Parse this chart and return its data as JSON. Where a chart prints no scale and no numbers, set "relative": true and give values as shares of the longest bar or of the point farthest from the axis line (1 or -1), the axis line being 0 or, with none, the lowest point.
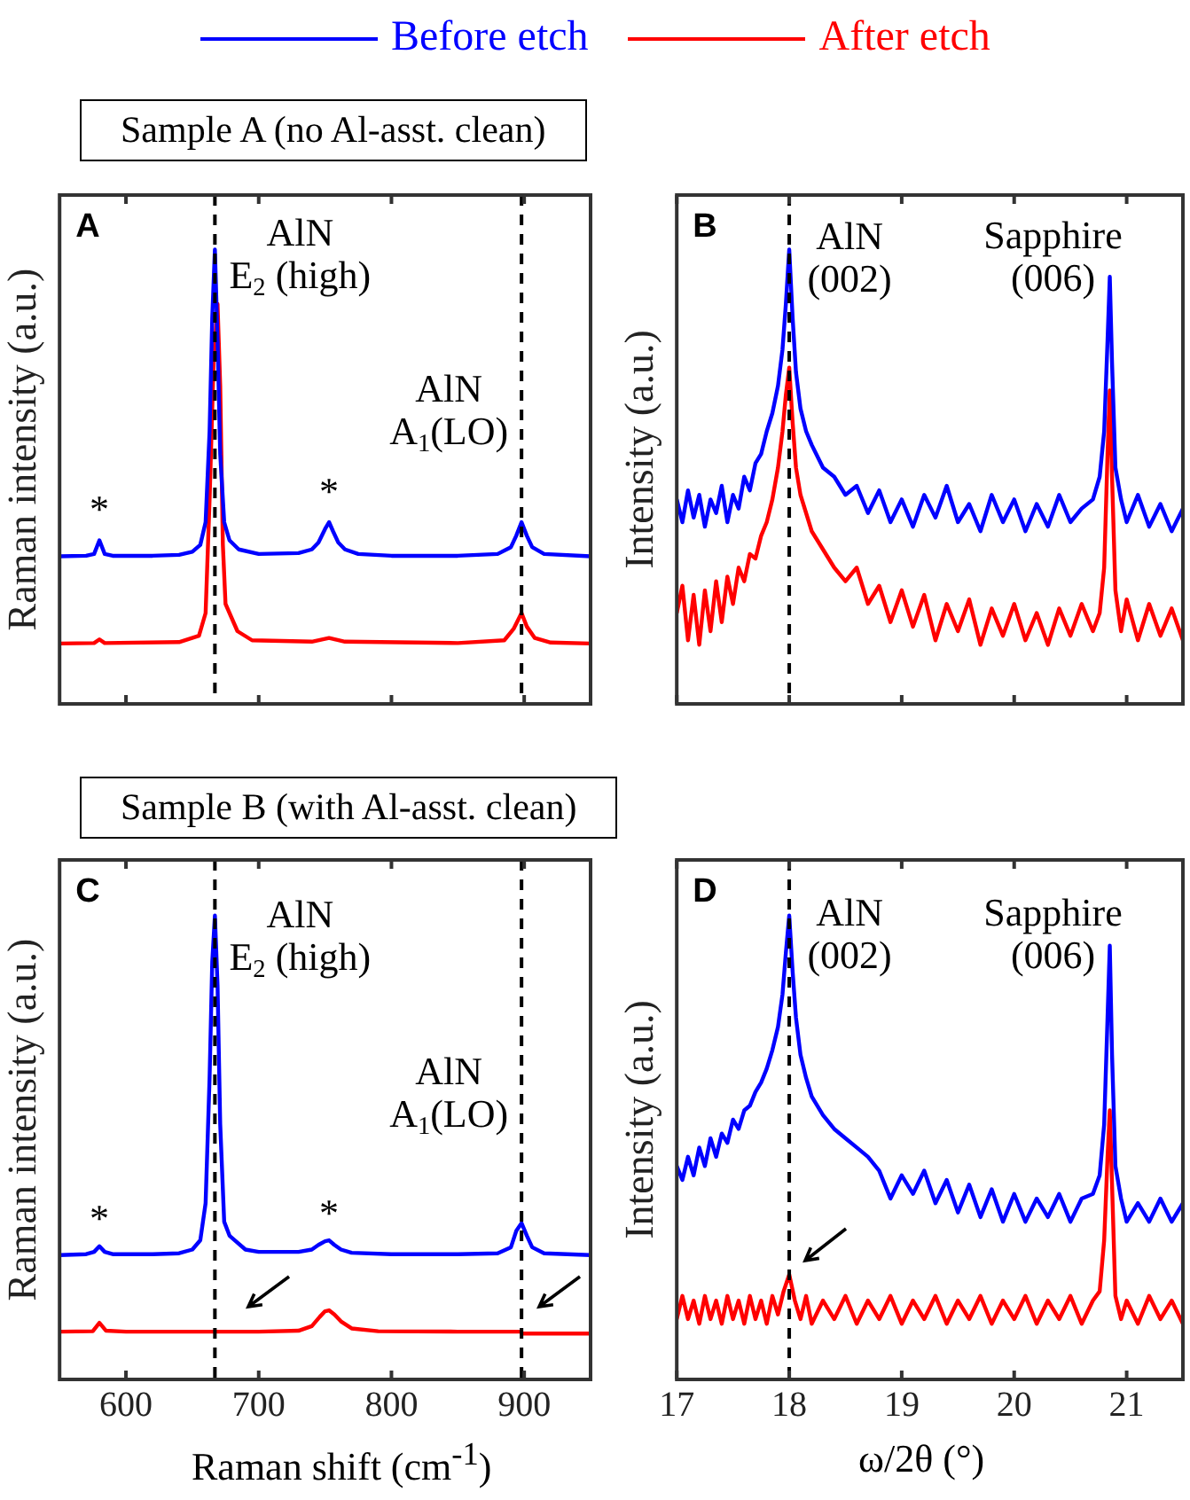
{
  "chart_data": [
    {
      "type": "line",
      "title": "Sample A (no Al-asst. clean)",
      "ylabel": "Raman intensity (a.u.)",
      "relative": true,
      "legend": "top",
      "tick_labels": false,
      "xlim": [
        550,
        950
      ],
      "xticks": [
        600,
        700,
        800,
        900
      ],
      "ref_lines": [
        {
          "axis": "x",
          "value": 667,
          "color": "#000000",
          "line_style": "dashed"
        },
        {
          "axis": "x",
          "value": 898,
          "color": "#000000",
          "line_style": "dashed"
        }
      ],
      "annotations": [
        "A",
        {
          "text": "AlN\nE$_{2}$ (high)",
          "x": 667,
          "y": 1
        },
        {
          "text": "AlN\nA$_{1}$(LO)",
          "x": 898,
          "y": 0.4
        },
        {
          "text": "*",
          "x": 580,
          "y": 0.36
        },
        {
          "text": "*",
          "x": 753,
          "y": 0.4
        }
      ],
      "series": [
        {
          "name": "Before etch",
          "color": "#0000ff",
          "x": [
            550,
            570,
            576,
            580,
            584,
            590,
            620,
            640,
            650,
            656,
            660,
            663,
            665,
            667,
            669,
            671,
            674,
            678,
            685,
            700,
            730,
            740,
            745,
            750,
            753,
            756,
            760,
            765,
            775,
            800,
            850,
            880,
            890,
            894,
            898,
            902,
            906,
            915,
            950
          ],
          "values": [
            0.325,
            0.326,
            0.33,
            0.36,
            0.33,
            0.326,
            0.326,
            0.328,
            0.335,
            0.35,
            0.4,
            0.6,
            0.85,
            1,
            0.8,
            0.55,
            0.4,
            0.36,
            0.34,
            0.33,
            0.332,
            0.34,
            0.355,
            0.385,
            0.4,
            0.38,
            0.355,
            0.34,
            0.33,
            0.326,
            0.326,
            0.33,
            0.345,
            0.37,
            0.4,
            0.37,
            0.345,
            0.33,
            0.325
          ]
        },
        {
          "name": "After etch",
          "color": "#ff0000",
          "x": [
            550,
            576,
            580,
            584,
            640,
            655,
            660,
            663,
            666,
            669,
            671,
            673,
            675,
            678,
            684,
            695,
            740,
            753,
            765,
            850,
            885,
            892,
            898,
            902,
            908,
            920,
            950
          ],
          "values": [
            0.133,
            0.134,
            0.142,
            0.134,
            0.136,
            0.15,
            0.2,
            0.45,
            0.75,
            0.88,
            0.7,
            0.35,
            0.22,
            0.2,
            0.16,
            0.14,
            0.137,
            0.145,
            0.137,
            0.134,
            0.14,
            0.165,
            0.2,
            0.17,
            0.145,
            0.135,
            0.133
          ]
        }
      ]
    },
    {
      "type": "line",
      "ylabel": "Intensity (a.u.)",
      "relative": true,
      "tick_labels": false,
      "xlim": [
        17,
        21.5
      ],
      "xticks": [
        17,
        18,
        19,
        20,
        21
      ],
      "ref_lines": [
        {
          "axis": "x",
          "value": 18,
          "color": "#000000",
          "line_style": "dashed"
        }
      ],
      "annotations": [
        "B",
        {
          "text": "AlN\n(002)",
          "x": 18,
          "y": 1
        },
        {
          "text": "Sapphire\n(006)",
          "x": 20.85,
          "y": 0.94
        }
      ],
      "series": [
        {
          "color": "#0000ff",
          "x": [
            17,
            17.05,
            17.1,
            17.15,
            17.2,
            17.25,
            17.3,
            17.35,
            17.4,
            17.45,
            17.5,
            17.55,
            17.6,
            17.65,
            17.7,
            17.75,
            17.8,
            17.85,
            17.9,
            17.94,
            17.97,
            18,
            18.03,
            18.06,
            18.1,
            18.15,
            18.2,
            18.3,
            18.4,
            18.5,
            18.6,
            18.7,
            18.8,
            18.9,
            19,
            19.1,
            19.2,
            19.3,
            19.4,
            19.5,
            19.6,
            19.7,
            19.8,
            19.9,
            20,
            20.1,
            20.2,
            20.3,
            20.4,
            20.5,
            20.6,
            20.7,
            20.76,
            20.8,
            20.83,
            20.85,
            20.87,
            20.9,
            20.95,
            21,
            21.1,
            21.2,
            21.3,
            21.4,
            21.5
          ],
          "values": [
            0.45,
            0.4,
            0.47,
            0.41,
            0.46,
            0.39,
            0.45,
            0.42,
            0.48,
            0.4,
            0.46,
            0.43,
            0.5,
            0.47,
            0.53,
            0.55,
            0.6,
            0.64,
            0.7,
            0.78,
            0.88,
            1,
            0.85,
            0.73,
            0.65,
            0.6,
            0.57,
            0.52,
            0.5,
            0.46,
            0.48,
            0.42,
            0.47,
            0.4,
            0.45,
            0.39,
            0.46,
            0.41,
            0.48,
            0.4,
            0.44,
            0.38,
            0.46,
            0.4,
            0.45,
            0.38,
            0.44,
            0.39,
            0.46,
            0.4,
            0.43,
            0.45,
            0.5,
            0.6,
            0.8,
            0.94,
            0.75,
            0.52,
            0.45,
            0.4,
            0.46,
            0.39,
            0.44,
            0.38,
            0.43
          ]
        },
        {
          "color": "#ff0000",
          "x": [
            17,
            17.05,
            17.1,
            17.15,
            17.2,
            17.25,
            17.3,
            17.35,
            17.4,
            17.45,
            17.5,
            17.55,
            17.6,
            17.65,
            17.7,
            17.75,
            17.8,
            17.85,
            17.9,
            17.94,
            17.97,
            18,
            18.03,
            18.06,
            18.1,
            18.15,
            18.2,
            18.3,
            18.4,
            18.5,
            18.6,
            18.7,
            18.8,
            18.9,
            19,
            19.1,
            19.2,
            19.3,
            19.4,
            19.5,
            19.6,
            19.7,
            19.8,
            19.9,
            20,
            20.1,
            20.2,
            20.3,
            20.4,
            20.5,
            20.6,
            20.7,
            20.76,
            20.8,
            20.83,
            20.85,
            20.87,
            20.9,
            20.95,
            21,
            21.1,
            21.2,
            21.3,
            21.4,
            21.5
          ],
          "values": [
            0.2,
            0.26,
            0.14,
            0.24,
            0.13,
            0.25,
            0.16,
            0.27,
            0.18,
            0.28,
            0.22,
            0.3,
            0.27,
            0.33,
            0.32,
            0.37,
            0.4,
            0.45,
            0.52,
            0.6,
            0.68,
            0.74,
            0.62,
            0.52,
            0.46,
            0.42,
            0.38,
            0.34,
            0.3,
            0.27,
            0.3,
            0.22,
            0.26,
            0.18,
            0.25,
            0.17,
            0.24,
            0.14,
            0.22,
            0.16,
            0.23,
            0.13,
            0.21,
            0.15,
            0.22,
            0.14,
            0.2,
            0.13,
            0.21,
            0.15,
            0.22,
            0.16,
            0.2,
            0.3,
            0.55,
            0.69,
            0.5,
            0.25,
            0.16,
            0.23,
            0.14,
            0.22,
            0.15,
            0.21,
            0.14
          ]
        }
      ]
    },
    {
      "type": "line",
      "title": "Sample B (with Al-asst. clean)",
      "ylabel": "Raman intensity (a.u.)",
      "xlabel": "Raman shift (cm$^{-1}$)",
      "relative": true,
      "tick_labels": "x",
      "xlim": [
        550,
        950
      ],
      "xticks": [
        600,
        700,
        800,
        900
      ],
      "ref_lines": [
        {
          "axis": "x",
          "value": 667,
          "color": "#000000",
          "line_style": "dashed"
        },
        {
          "axis": "x",
          "value": 898,
          "color": "#000000",
          "line_style": "dashed"
        }
      ],
      "annotations": [
        "C",
        {
          "text": "AlN\nE$_{2}$ (high)",
          "x": 667,
          "y": 1
        },
        {
          "text": "AlN\nA$_{1}$(LO)",
          "x": 898,
          "y": 0.337
        },
        {
          "text": "*",
          "x": 580,
          "y": 0.287
        },
        {
          "text": "*",
          "x": 753,
          "y": 0.3
        }
      ],
      "series": [
        {
          "color": "#0000ff",
          "x": [
            550,
            570,
            576,
            580,
            584,
            590,
            620,
            640,
            650,
            656,
            660,
            663,
            665,
            667,
            669,
            671,
            674,
            678,
            682,
            690,
            700,
            730,
            740,
            745,
            750,
            753,
            757,
            762,
            770,
            800,
            850,
            880,
            890,
            894,
            898,
            902,
            906,
            915,
            950
          ],
          "values": [
            0.268,
            0.27,
            0.275,
            0.287,
            0.275,
            0.27,
            0.27,
            0.272,
            0.28,
            0.3,
            0.38,
            0.65,
            0.9,
            1,
            0.85,
            0.55,
            0.34,
            0.31,
            0.3,
            0.28,
            0.275,
            0.275,
            0.28,
            0.29,
            0.298,
            0.3,
            0.29,
            0.28,
            0.273,
            0.27,
            0.27,
            0.272,
            0.285,
            0.32,
            0.337,
            0.31,
            0.285,
            0.272,
            0.268
          ]
        },
        {
          "color": "#ff0000",
          "x": [
            550,
            575,
            580,
            585,
            600,
            700,
            730,
            740,
            746,
            750,
            753,
            757,
            762,
            770,
            790,
            850,
            897,
            899,
            950
          ],
          "values": [
            0.103,
            0.104,
            0.122,
            0.105,
            0.103,
            0.103,
            0.105,
            0.115,
            0.135,
            0.147,
            0.149,
            0.14,
            0.125,
            0.11,
            0.104,
            0.103,
            0.103,
            0.099,
            0.099
          ]
        }
      ]
    },
    {
      "type": "line",
      "ylabel": "Intensity (a.u.)",
      "xlabel": "ω/2θ (°)",
      "relative": true,
      "tick_labels": "x",
      "xlim": [
        17,
        21.5
      ],
      "xticks": [
        17,
        18,
        19,
        20,
        21
      ],
      "ref_lines": [
        {
          "axis": "x",
          "value": 18,
          "color": "#000000",
          "line_style": "dashed"
        }
      ],
      "annotations": [
        "D",
        {
          "text": "AlN\n(002)",
          "x": 18,
          "y": 1
        },
        {
          "text": "Sapphire\n(006)",
          "x": 20.85,
          "y": 0.935
        }
      ],
      "series": [
        {
          "color": "#0000ff",
          "x": [
            17,
            17.05,
            17.1,
            17.15,
            17.2,
            17.25,
            17.3,
            17.35,
            17.4,
            17.45,
            17.5,
            17.55,
            17.6,
            17.65,
            17.7,
            17.75,
            17.8,
            17.85,
            17.9,
            17.94,
            17.97,
            18,
            18.03,
            18.06,
            18.1,
            18.15,
            18.2,
            18.3,
            18.4,
            18.5,
            18.6,
            18.7,
            18.8,
            18.9,
            19,
            19.1,
            19.2,
            19.3,
            19.4,
            19.5,
            19.6,
            19.7,
            19.8,
            19.9,
            20,
            20.1,
            20.2,
            20.3,
            20.4,
            20.5,
            20.6,
            20.7,
            20.76,
            20.8,
            20.83,
            20.85,
            20.87,
            20.9,
            20.95,
            21,
            21.1,
            21.2,
            21.3,
            21.4,
            21.5
          ],
          "values": [
            0.46,
            0.43,
            0.48,
            0.44,
            0.5,
            0.46,
            0.52,
            0.48,
            0.53,
            0.51,
            0.56,
            0.54,
            0.58,
            0.59,
            0.62,
            0.64,
            0.67,
            0.71,
            0.76,
            0.83,
            0.92,
            1,
            0.88,
            0.78,
            0.7,
            0.65,
            0.61,
            0.57,
            0.54,
            0.52,
            0.5,
            0.48,
            0.45,
            0.39,
            0.44,
            0.4,
            0.45,
            0.38,
            0.43,
            0.36,
            0.42,
            0.35,
            0.41,
            0.34,
            0.4,
            0.34,
            0.39,
            0.35,
            0.4,
            0.34,
            0.39,
            0.4,
            0.44,
            0.55,
            0.78,
            0.935,
            0.7,
            0.46,
            0.39,
            0.34,
            0.38,
            0.34,
            0.39,
            0.34,
            0.38
          ]
        },
        {
          "color": "#ff0000",
          "x": [
            17,
            17.05,
            17.1,
            17.15,
            17.2,
            17.25,
            17.3,
            17.35,
            17.4,
            17.45,
            17.5,
            17.55,
            17.6,
            17.65,
            17.7,
            17.75,
            17.8,
            17.85,
            17.9,
            17.95,
            18,
            18.05,
            18.1,
            18.15,
            18.2,
            18.3,
            18.4,
            18.5,
            18.6,
            18.7,
            18.8,
            18.9,
            19,
            19.1,
            19.2,
            19.3,
            19.4,
            19.5,
            19.6,
            19.7,
            19.8,
            19.9,
            20,
            20.1,
            20.2,
            20.3,
            20.4,
            20.5,
            20.6,
            20.7,
            20.76,
            20.8,
            20.83,
            20.85,
            20.87,
            20.9,
            20.95,
            21,
            21.1,
            21.2,
            21.3,
            21.4,
            21.5
          ],
          "values": [
            0.13,
            0.18,
            0.13,
            0.17,
            0.12,
            0.18,
            0.13,
            0.17,
            0.12,
            0.18,
            0.13,
            0.17,
            0.12,
            0.18,
            0.13,
            0.17,
            0.12,
            0.18,
            0.14,
            0.19,
            0.226,
            0.17,
            0.13,
            0.18,
            0.12,
            0.17,
            0.13,
            0.18,
            0.12,
            0.17,
            0.13,
            0.18,
            0.12,
            0.17,
            0.13,
            0.18,
            0.12,
            0.17,
            0.13,
            0.18,
            0.12,
            0.17,
            0.13,
            0.18,
            0.12,
            0.17,
            0.13,
            0.18,
            0.12,
            0.17,
            0.19,
            0.3,
            0.48,
            0.58,
            0.42,
            0.18,
            0.13,
            0.17,
            0.12,
            0.18,
            0.13,
            0.17,
            0.12
          ]
        }
      ]
    }
  ]
}
